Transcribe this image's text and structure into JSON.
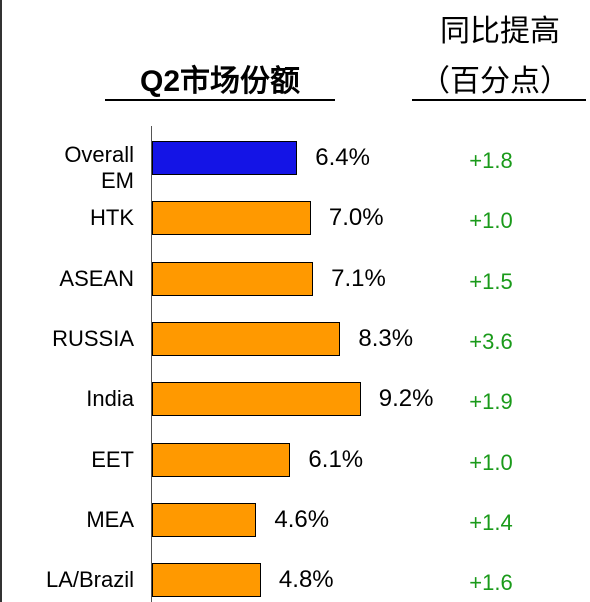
{
  "chart_data": {
    "type": "bar",
    "orientation": "horizontal",
    "title": "Q2市场份额",
    "column_header": [
      "同比提高",
      "（百分点）"
    ],
    "categories": [
      "Overall EM",
      "HTK",
      "ASEAN",
      "RUSSIA",
      "India",
      "EET",
      "MEA",
      "LA/Brazil"
    ],
    "values": [
      6.4,
      7.0,
      7.1,
      8.3,
      9.2,
      6.1,
      4.6,
      4.8
    ],
    "value_labels": [
      "6.4%",
      "7.0%",
      "7.1%",
      "8.3%",
      "9.2%",
      "6.1%",
      "4.6%",
      "4.8%"
    ],
    "changes": [
      "+1.8",
      "+1.0",
      "+1.5",
      "+3.6",
      "+1.9",
      "+1.0",
      "+1.4",
      "+1.6"
    ],
    "colors": [
      "#1414e6",
      "#ff9900",
      "#ff9900",
      "#ff9900",
      "#ff9900",
      "#ff9900",
      "#ff9900",
      "#ff9900"
    ],
    "change_color": "#1a9a1a",
    "xlim": [
      0,
      19.3
    ]
  }
}
